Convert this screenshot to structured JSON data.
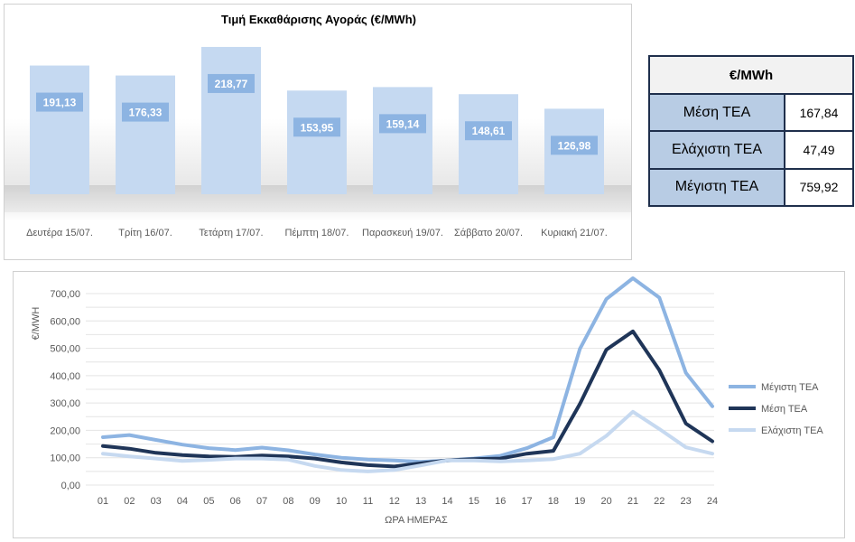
{
  "chart_data": [
    {
      "type": "bar",
      "title": "Τιμή Εκκαθάρισης Αγοράς (€/MWh)",
      "categories": [
        "Δευτέρα 15/07.",
        "Τρίτη 16/07.",
        "Τετάρτη 17/07.",
        "Πέμπτη 18/07.",
        "Παρασκευή 19/07.",
        "Σάββατο 20/07.",
        "Κυριακή 21/07."
      ],
      "values": [
        191.13,
        176.33,
        218.77,
        153.95,
        159.14,
        148.61,
        126.98
      ],
      "value_labels": [
        "191,13",
        "176,33",
        "218,77",
        "153,95",
        "159,14",
        "148,61",
        "126,98"
      ],
      "bar_color": "#c5d9f1",
      "label_bg": "#8db4e2"
    },
    {
      "type": "line",
      "xlabel": "ΩΡΑ ΗΜΕΡΑΣ",
      "ylabel": "€/MWH",
      "x": [
        "01",
        "02",
        "03",
        "04",
        "05",
        "06",
        "07",
        "08",
        "09",
        "10",
        "11",
        "12",
        "13",
        "14",
        "15",
        "16",
        "17",
        "18",
        "19",
        "20",
        "21",
        "22",
        "23",
        "24"
      ],
      "ylim": [
        0,
        700
      ],
      "yticks": [
        "0,00",
        "100,00",
        "200,00",
        "300,00",
        "400,00",
        "500,00",
        "600,00",
        "700,00"
      ],
      "grid": true,
      "legend_position": "right",
      "series": [
        {
          "name": "Μέγιστη ΤΕΑ",
          "color": "#8db4e2",
          "values": [
            175,
            183,
            165,
            148,
            135,
            128,
            137,
            127,
            112,
            100,
            93,
            90,
            85,
            90,
            97,
            107,
            135,
            175,
            498,
            680,
            756,
            685,
            410,
            288
          ]
        },
        {
          "name": "Μέση ΤΕΑ",
          "color": "#1f3558",
          "values": [
            143,
            133,
            118,
            110,
            105,
            103,
            108,
            105,
            97,
            83,
            73,
            68,
            80,
            90,
            95,
            97,
            115,
            125,
            297,
            495,
            562,
            420,
            225,
            160
          ]
        },
        {
          "name": "Ελάχιστη ΤΕΑ",
          "color": "#c6d9f0",
          "values": [
            115,
            105,
            97,
            88,
            92,
            97,
            97,
            93,
            70,
            55,
            50,
            55,
            72,
            90,
            90,
            87,
            90,
            95,
            115,
            180,
            268,
            205,
            138,
            115
          ]
        }
      ]
    }
  ],
  "stats_table": {
    "header": "€/MWh",
    "rows": [
      {
        "label": "Μέση ΤΕΑ",
        "value": "167,84"
      },
      {
        "label": "Ελάχιστη ΤΕΑ",
        "value": "47,49"
      },
      {
        "label": "Μέγιστη ΤΕΑ",
        "value": "759,92"
      }
    ]
  }
}
